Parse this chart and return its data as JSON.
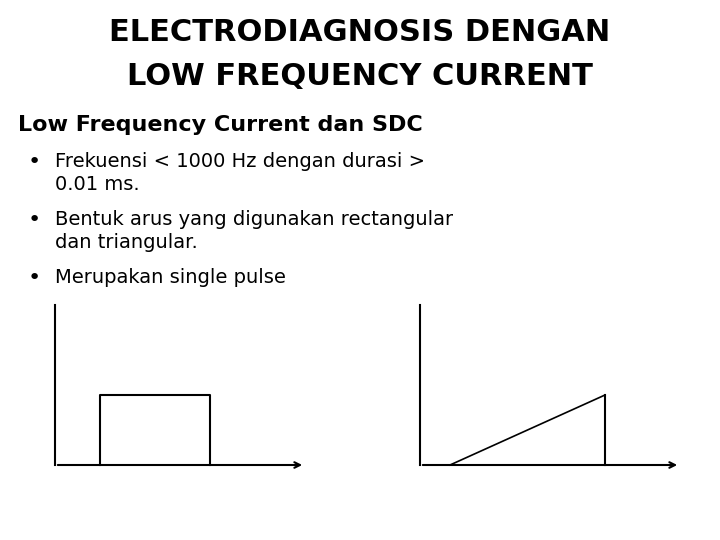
{
  "title_line1": "ELECTRODIAGNOSIS DENGAN",
  "title_line2": "LOW FREQUENCY CURRENT",
  "subtitle": "Low Frequency Current dan SDC",
  "bullet1a": "Frekuensi < 1000 Hz dengan durasi >",
  "bullet1b": "0.01 ms.",
  "bullet2a": "Bentuk arus yang digunakan rectangular",
  "bullet2b": "dan triangular.",
  "bullet3": "Merupakan single pulse",
  "bg_color": "#ffffff",
  "text_color": "#000000",
  "title_fontsize": 22,
  "subtitle_fontsize": 16,
  "body_fontsize": 14,
  "bullet_fontsize": 16
}
